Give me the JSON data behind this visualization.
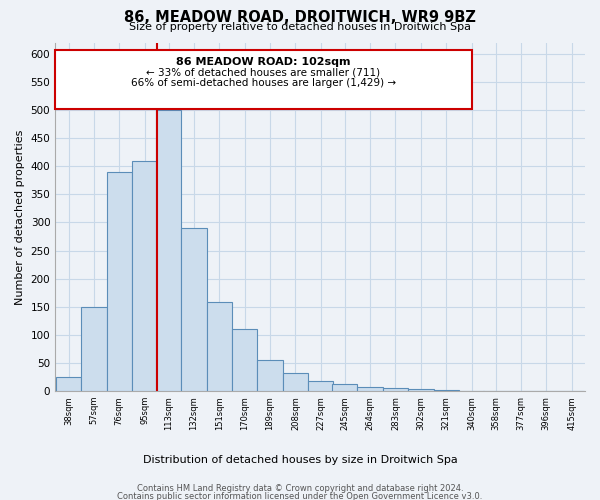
{
  "title": "86, MEADOW ROAD, DROITWICH, WR9 9BZ",
  "subtitle": "Size of property relative to detached houses in Droitwich Spa",
  "xlabel": "Distribution of detached houses by size in Droitwich Spa",
  "ylabel": "Number of detached properties",
  "bar_labels": [
    "38sqm",
    "57sqm",
    "76sqm",
    "95sqm",
    "113sqm",
    "132sqm",
    "151sqm",
    "170sqm",
    "189sqm",
    "208sqm",
    "227sqm",
    "245sqm",
    "264sqm",
    "283sqm",
    "302sqm",
    "321sqm",
    "340sqm",
    "358sqm",
    "377sqm",
    "396sqm",
    "415sqm"
  ],
  "bar_values": [
    25,
    150,
    390,
    410,
    500,
    290,
    158,
    110,
    55,
    33,
    18,
    12,
    8,
    5,
    3,
    2,
    1,
    1,
    1,
    1,
    1
  ],
  "bar_color": "#ccdded",
  "bar_edge_color": "#5b8db8",
  "bar_edge_width": 0.8,
  "reference_line_label": "86 MEADOW ROAD: 102sqm",
  "annotation_line1": "← 33% of detached houses are smaller (711)",
  "annotation_line2": "66% of semi-detached houses are larger (1,429) →",
  "box_edge_color": "#cc0000",
  "ylim": [
    0,
    620
  ],
  "yticks": [
    0,
    50,
    100,
    150,
    200,
    250,
    300,
    350,
    400,
    450,
    500,
    550,
    600
  ],
  "bin_width": 19,
  "footer1": "Contains HM Land Registry data © Crown copyright and database right 2024.",
  "footer2": "Contains public sector information licensed under the Open Government Licence v3.0.",
  "grid_color": "#c8d8e8",
  "background_color": "#eef2f7"
}
